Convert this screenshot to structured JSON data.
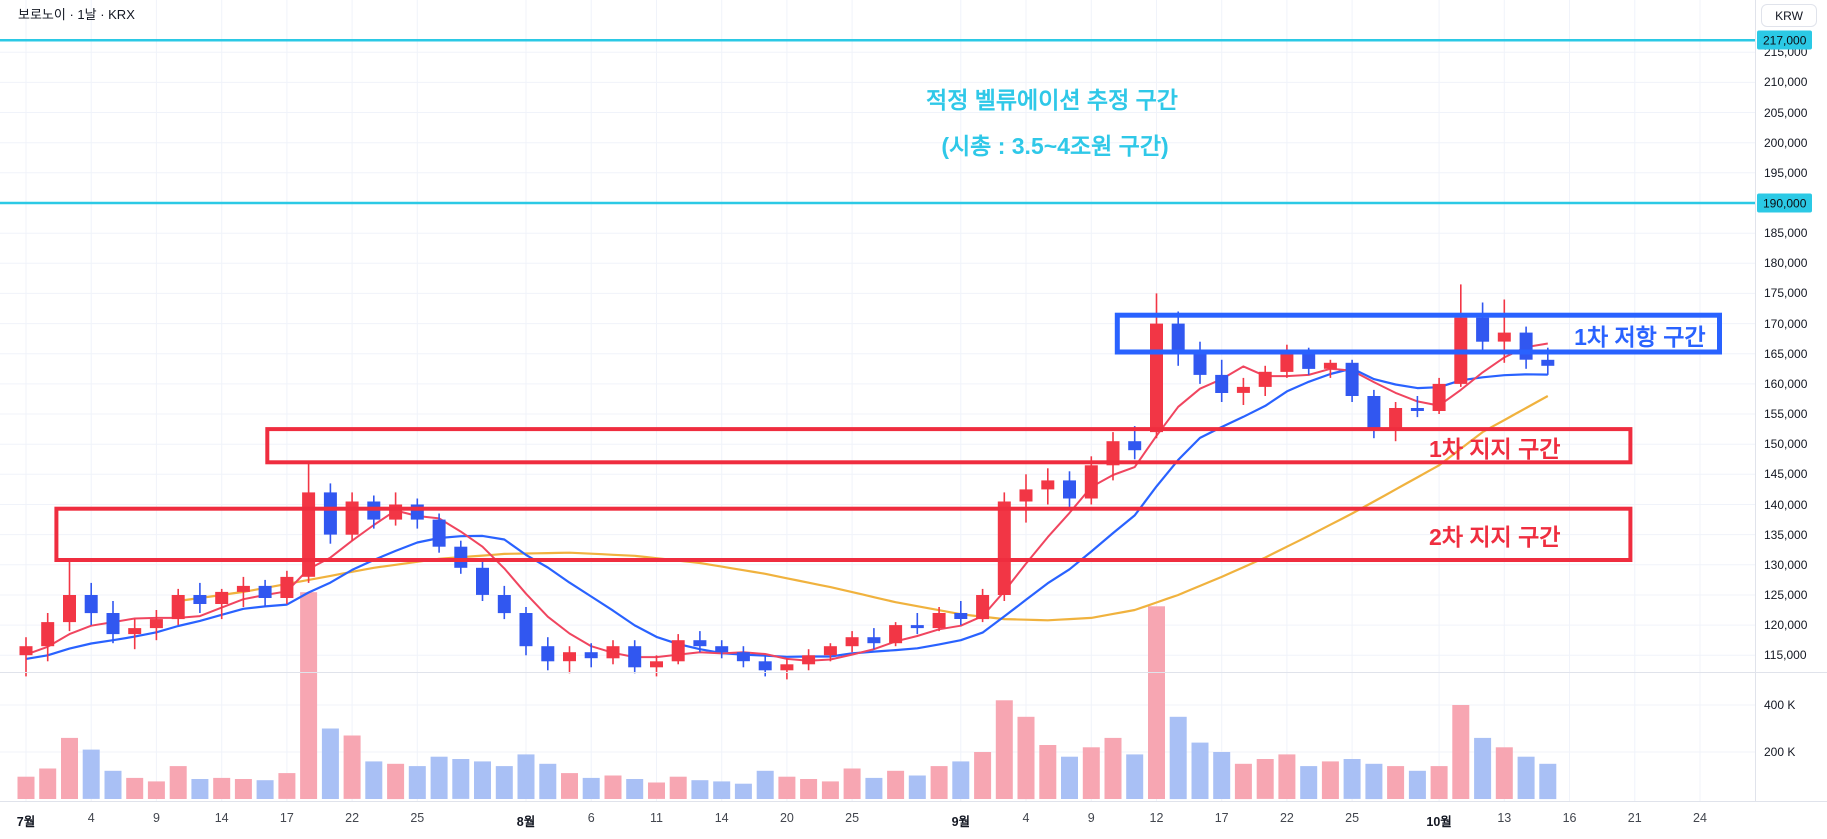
{
  "header": {
    "title": "보로노이 · 1날 · KRX",
    "currency": "KRW"
  },
  "annotation": {
    "line1": "적정 벨류에이션 추정 구간",
    "line2": "(시총 : 3.5~4조원 구간)"
  },
  "hlines": [
    {
      "price": 217000,
      "label": "217,000"
    },
    {
      "price": 190000,
      "label": "190,000"
    }
  ],
  "zones": [
    {
      "label": "1차 저항 구간",
      "color": "#2962ff",
      "bar_start": 50.2,
      "bar_end": 77.9,
      "price_top": 171400,
      "price_bottom": 165300,
      "border": 5,
      "label_offset": 14
    },
    {
      "label": "1차 지지 구간",
      "color": "#ef2d3f",
      "bar_start": 11.1,
      "bar_end": 73.8,
      "price_top": 152500,
      "price_bottom": 147000,
      "border": 4,
      "label_offset": 70
    },
    {
      "label": "2차 지지 구간",
      "color": "#ef2d3f",
      "bar_start": 1.4,
      "bar_end": 73.8,
      "price_top": 139300,
      "price_bottom": 130800,
      "border": 4,
      "label_offset": 70
    }
  ],
  "colors": {
    "up": "#f23645",
    "down": "#3157f0",
    "vol_up": "#f7a6b2",
    "vol_down": "#a9c0f5",
    "ma_fast": "#f0455f",
    "ma_mid": "#2962ff",
    "ma_slow": "#f0b23e",
    "cyan": "#2bc9e5",
    "annotation_text": "#2fc8e8",
    "grid": "#f0f3fa",
    "border": "#e0e3eb",
    "text": "#131722"
  },
  "chart_data": {
    "type": "candlestick",
    "title": "보로노이 1날 KRX",
    "price_axis": {
      "tick_min": 115000,
      "tick_max": 215000,
      "tick_step": 5000
    },
    "volume_axis": [
      {
        "label": "400 K",
        "value_k": 400
      },
      {
        "label": "200 K",
        "value_k": 200
      }
    ],
    "time_axis": [
      {
        "label": "7월",
        "month": true,
        "bar": 0
      },
      {
        "label": "4",
        "bar": 3
      },
      {
        "label": "9",
        "bar": 6
      },
      {
        "label": "14",
        "bar": 9
      },
      {
        "label": "17",
        "bar": 12
      },
      {
        "label": "22",
        "bar": 15
      },
      {
        "label": "25",
        "bar": 18
      },
      {
        "label": "8월",
        "month": true,
        "bar": 23
      },
      {
        "label": "6",
        "bar": 26
      },
      {
        "label": "11",
        "bar": 29
      },
      {
        "label": "14",
        "bar": 32
      },
      {
        "label": "20",
        "bar": 35
      },
      {
        "label": "25",
        "bar": 38
      },
      {
        "label": "9월",
        "month": true,
        "bar": 43
      },
      {
        "label": "4",
        "bar": 46
      },
      {
        "label": "9",
        "bar": 49
      },
      {
        "label": "12",
        "bar": 52
      },
      {
        "label": "17",
        "bar": 55
      },
      {
        "label": "22",
        "bar": 58
      },
      {
        "label": "25",
        "bar": 61
      },
      {
        "label": "10월",
        "month": true,
        "bar": 65
      },
      {
        "label": "13",
        "bar": 68
      },
      {
        "label": "16",
        "bar": 71
      },
      {
        "label": "21",
        "bar": 74
      },
      {
        "label": "24",
        "bar": 77
      }
    ],
    "candles": {
      "open": [
        115000,
        116500,
        120500,
        125000,
        122000,
        118500,
        119500,
        121000,
        125000,
        123500,
        125500,
        126500,
        124500,
        128000,
        142000,
        135000,
        140500,
        137500,
        140000,
        137500,
        133000,
        129500,
        125000,
        122000,
        116500,
        114000,
        115500,
        114500,
        116500,
        113000,
        114000,
        117500,
        116500,
        115500,
        114000,
        112500,
        113500,
        115000,
        116500,
        118000,
        117000,
        120000,
        119500,
        122000,
        121000,
        125000,
        140500,
        142500,
        144000,
        141000,
        146500,
        150500,
        152000,
        170000,
        165000,
        161500,
        158500,
        159500,
        162000,
        165000,
        162500,
        163500,
        158000,
        152500,
        156000,
        155500,
        160000,
        171000,
        167000,
        168500,
        164000
      ],
      "high": [
        118000,
        122000,
        130500,
        127000,
        124000,
        121000,
        122500,
        126000,
        127000,
        126000,
        128000,
        127500,
        129000,
        147000,
        143500,
        142000,
        141500,
        142000,
        141000,
        138500,
        134000,
        131000,
        126500,
        123000,
        118000,
        116500,
        117000,
        117500,
        117500,
        115000,
        118500,
        119000,
        117500,
        116500,
        115000,
        114500,
        116000,
        117000,
        119000,
        119500,
        120500,
        122000,
        123000,
        124000,
        126000,
        142000,
        145000,
        146000,
        145500,
        148000,
        152000,
        153000,
        175000,
        172000,
        167000,
        164000,
        161000,
        163000,
        166500,
        166000,
        164000,
        164000,
        159000,
        157000,
        158000,
        161000,
        176500,
        173500,
        174000,
        169500,
        166000
      ],
      "low": [
        111500,
        114000,
        119000,
        120000,
        117000,
        116000,
        117500,
        120000,
        122000,
        121000,
        123000,
        123000,
        123500,
        127000,
        133500,
        134000,
        136000,
        136500,
        136000,
        132000,
        128500,
        124000,
        121000,
        115000,
        112500,
        112000,
        113000,
        113500,
        112000,
        111500,
        113500,
        115500,
        114500,
        113000,
        111500,
        111000,
        112500,
        114000,
        115500,
        116000,
        116500,
        118500,
        119000,
        120000,
        120500,
        124000,
        137000,
        140000,
        139000,
        140000,
        144000,
        147500,
        151000,
        163000,
        160000,
        157000,
        156500,
        158000,
        161000,
        161500,
        161000,
        157000,
        151000,
        150500,
        154500,
        155000,
        159500,
        165500,
        163500,
        162500,
        161500
      ],
      "close": [
        116500,
        120500,
        125000,
        122000,
        118500,
        119500,
        121000,
        125000,
        123500,
        125500,
        126500,
        124500,
        128000,
        142000,
        135000,
        140500,
        137500,
        140000,
        137500,
        133000,
        129500,
        125000,
        122000,
        116500,
        114000,
        115500,
        114500,
        116500,
        113000,
        114000,
        117500,
        116500,
        115500,
        114000,
        112500,
        113500,
        115000,
        116500,
        118000,
        117000,
        120000,
        119500,
        122000,
        121000,
        125000,
        140500,
        142500,
        144000,
        141000,
        146500,
        150500,
        149000,
        170000,
        165000,
        161500,
        158500,
        159500,
        162000,
        165000,
        162500,
        163500,
        158000,
        152500,
        156000,
        155500,
        160000,
        171000,
        167000,
        168500,
        164000,
        163000
      ],
      "volume_k": [
        95,
        130,
        260,
        210,
        120,
        90,
        75,
        140,
        85,
        90,
        85,
        80,
        110,
        880,
        300,
        270,
        160,
        150,
        140,
        180,
        170,
        160,
        140,
        190,
        150,
        110,
        90,
        100,
        85,
        70,
        95,
        80,
        75,
        65,
        120,
        95,
        85,
        75,
        130,
        90,
        120,
        100,
        140,
        160,
        200,
        420,
        350,
        230,
        180,
        220,
        260,
        190,
        820,
        350,
        240,
        200,
        150,
        170,
        190,
        140,
        160,
        170,
        150,
        140,
        120,
        140,
        400,
        260,
        220,
        180,
        150
      ]
    },
    "ma_fast_period": 5,
    "ma_mid_period": 10,
    "ma_padding_closes": [
      118000,
      117500,
      117000,
      116000,
      115000,
      114500,
      114000,
      113500,
      114000,
      114500,
      115000,
      114500,
      114000,
      113500,
      113000,
      113500,
      114000,
      114500,
      115000,
      115500
    ],
    "ma_slow_anchors": [
      [
        7,
        124000
      ],
      [
        10,
        125500
      ],
      [
        13,
        127500
      ],
      [
        16,
        129500
      ],
      [
        19,
        131000
      ],
      [
        22,
        131800
      ],
      [
        25,
        132000
      ],
      [
        28,
        131500
      ],
      [
        31,
        130300
      ],
      [
        34,
        128500
      ],
      [
        37,
        126300
      ],
      [
        40,
        123800
      ],
      [
        43,
        121800
      ],
      [
        45,
        121000
      ],
      [
        47,
        120800
      ],
      [
        49,
        121200
      ],
      [
        51,
        122500
      ],
      [
        53,
        125000
      ],
      [
        55,
        128000
      ],
      [
        57,
        131200
      ],
      [
        59,
        134800
      ],
      [
        61,
        138500
      ],
      [
        63,
        142500
      ],
      [
        65,
        146500
      ],
      [
        67,
        152000
      ],
      [
        69,
        156000
      ],
      [
        70,
        158000
      ]
    ]
  }
}
